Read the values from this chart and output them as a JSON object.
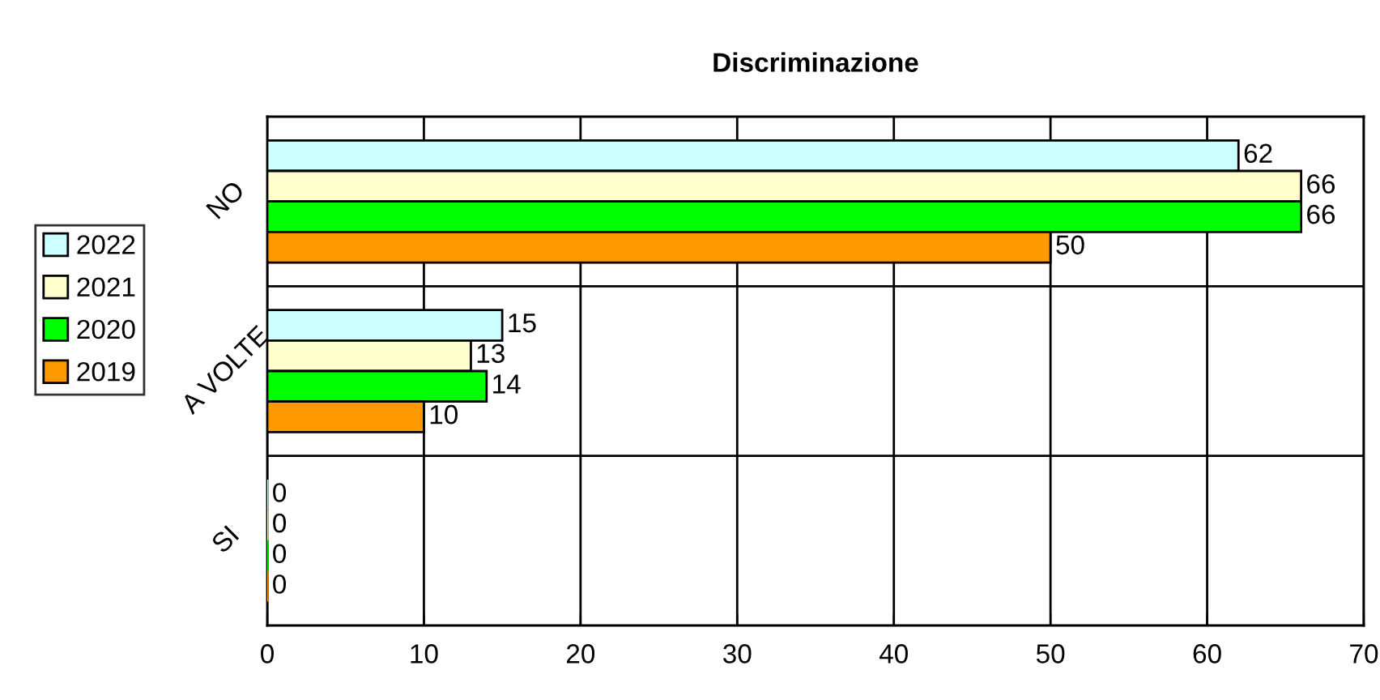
{
  "chart_data": {
    "type": "bar",
    "orientation": "horizontal",
    "title": "Discriminazione",
    "categories": [
      "NO",
      "A VOLTE",
      "SI"
    ],
    "series": [
      {
        "name": "2022",
        "color": "#ccffff",
        "values": [
          62,
          15,
          0
        ]
      },
      {
        "name": "2021",
        "color": "#ffffcc",
        "values": [
          66,
          13,
          0
        ]
      },
      {
        "name": "2020",
        "color": "#00ff00",
        "values": [
          66,
          14,
          0
        ]
      },
      {
        "name": "2019",
        "color": "#ff9900",
        "values": [
          50,
          10,
          0
        ]
      }
    ],
    "xlim": [
      0,
      70
    ],
    "xticks": [
      0,
      10,
      20,
      30,
      40,
      50,
      60,
      70
    ],
    "grid": true,
    "legend": "left",
    "data_labels": true
  }
}
